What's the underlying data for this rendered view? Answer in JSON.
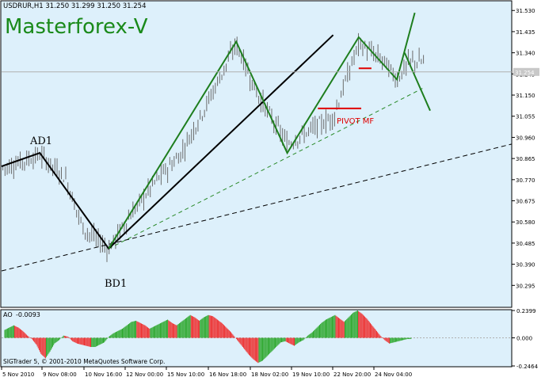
{
  "chart_data": {
    "type": "line",
    "symbol_header": "USDRUR,H1  31.250 31.299 31.250 31.254",
    "watermark": "Masterforex-V",
    "price_axis": {
      "min": 30.2,
      "max": 31.57,
      "ticks": [
        "31.530",
        "31.435",
        "31.340",
        "31.245",
        "31.150",
        "31.055",
        "30.960",
        "30.865",
        "30.770",
        "30.675",
        "30.580",
        "30.485",
        "30.390",
        "30.295"
      ]
    },
    "current_price": "31.254",
    "time_labels": [
      "5 Nov 2010",
      "9 Nov 08:00",
      "10 Nov 16:00",
      "12 Nov 00:00",
      "15 Nov 10:00",
      "16 Nov 18:00",
      "18 Nov 02:00",
      "19 Nov 10:00",
      "22 Nov 20:00",
      "24 Nov 04:00"
    ],
    "annotations": {
      "ad1": "AD1",
      "bd1": "BD1",
      "pivot": "PIVOT MF"
    },
    "black_zigzag": [
      [
        0,
        30.83
      ],
      [
        1.5,
        30.89
      ],
      [
        4.2,
        30.46
      ],
      [
        13,
        31.42
      ]
    ],
    "green_zigzag": [
      [
        4.2,
        30.46
      ],
      [
        9.2,
        31.39
      ],
      [
        11.2,
        30.89
      ],
      [
        14.0,
        31.41
      ],
      [
        15.5,
        31.22
      ],
      [
        16.2,
        31.52
      ]
    ],
    "green_forecast": [
      [
        15.8,
        31.34
      ],
      [
        16.8,
        31.08
      ]
    ],
    "green_dashed_trend": [
      [
        4.2,
        30.46
      ],
      [
        16.5,
        31.18
      ]
    ],
    "black_dashed_trend": [
      [
        0,
        30.36
      ],
      [
        20,
        30.93
      ]
    ],
    "pivot_level": 31.09,
    "short_red_level": 31.27,
    "oscillator": {
      "name": "AO",
      "value": "-0.0093",
      "ticks": [
        "0.2399",
        "0.000",
        "-0.2464"
      ],
      "values": [
        0.07,
        0.09,
        0.11,
        0.09,
        0.06,
        0.02,
        -0.01,
        -0.06,
        -0.14,
        -0.18,
        -0.12,
        -0.05,
        -0.02,
        0.02,
        0.01,
        -0.03,
        -0.05,
        -0.06,
        -0.07,
        -0.08,
        -0.08,
        -0.06,
        -0.04,
        0.01,
        0.04,
        0.06,
        0.08,
        0.11,
        0.14,
        0.15,
        0.13,
        0.11,
        0.08,
        0.1,
        0.12,
        0.14,
        0.16,
        0.13,
        0.11,
        0.14,
        0.17,
        0.2,
        0.18,
        0.15,
        0.18,
        0.2,
        0.19,
        0.16,
        0.13,
        0.09,
        0.05,
        0.0,
        -0.05,
        -0.1,
        -0.15,
        -0.19,
        -0.22,
        -0.2,
        -0.16,
        -0.12,
        -0.08,
        -0.04,
        -0.03,
        -0.05,
        -0.07,
        -0.04,
        -0.02,
        0.02,
        0.05,
        0.09,
        0.13,
        0.16,
        0.18,
        0.2,
        0.17,
        0.14,
        0.18,
        0.22,
        0.24,
        0.21,
        0.17,
        0.12,
        0.07,
        0.02,
        -0.02,
        -0.05,
        -0.04,
        -0.03,
        -0.02,
        -0.01,
        -0.01
      ]
    },
    "footer": "SIGTrader 5, © 2001-2010 MetaQuotes Software Corp."
  }
}
